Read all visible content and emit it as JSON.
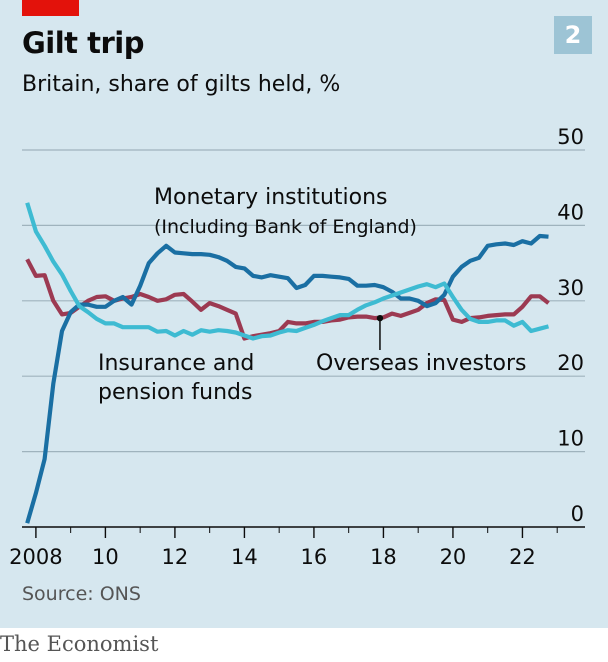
{
  "header": {
    "title": "Gilt trip",
    "subtitle": "Britain, share of gilts held, %",
    "badge": "2"
  },
  "footer": {
    "source": "Source: ONS",
    "brand": "The Economist"
  },
  "colors": {
    "background": "#d6e7ef",
    "monetary": "#1a6fa3",
    "insurance": "#3ebbd2",
    "overseas": "#9c3a52",
    "grid": "#9fb3bd",
    "accent": "#e3120b"
  },
  "chart_data": {
    "type": "line",
    "ylim": [
      0,
      50
    ],
    "yticks": [
      0,
      10,
      20,
      30,
      40,
      50
    ],
    "xlim": [
      2007.6,
      2023.8
    ],
    "xticks": [
      {
        "value": 2008,
        "label": "2008"
      },
      {
        "value": 2010,
        "label": "10"
      },
      {
        "value": 2012,
        "label": "12"
      },
      {
        "value": 2014,
        "label": "14"
      },
      {
        "value": 2016,
        "label": "16"
      },
      {
        "value": 2018,
        "label": "18"
      },
      {
        "value": 2020,
        "label": "20"
      },
      {
        "value": 2022,
        "label": "22"
      }
    ],
    "grid": true,
    "series": [
      {
        "name": "Monetary institutions",
        "sublabel": "(Including Bank of England)",
        "color": "#1a6fa3",
        "x": [
          2007.75,
          2008.0,
          2008.25,
          2008.5,
          2008.75,
          2009.0,
          2009.25,
          2009.5,
          2009.75,
          2010.0,
          2010.25,
          2010.5,
          2010.75,
          2011.0,
          2011.25,
          2011.5,
          2011.75,
          2012.0,
          2012.25,
          2012.5,
          2012.75,
          2013.0,
          2013.25,
          2013.5,
          2013.75,
          2014.0,
          2014.25,
          2014.5,
          2014.75,
          2015.0,
          2015.25,
          2015.5,
          2015.75,
          2016.0,
          2016.25,
          2016.5,
          2016.75,
          2017.0,
          2017.25,
          2017.5,
          2017.75,
          2018.0,
          2018.25,
          2018.5,
          2018.75,
          2019.0,
          2019.25,
          2019.5,
          2019.75,
          2020.0,
          2020.25,
          2020.5,
          2020.75,
          2021.0,
          2021.25,
          2021.5,
          2021.75,
          2022.0,
          2022.25,
          2022.5,
          2022.75
        ],
        "values": [
          0.5,
          4.5,
          9,
          19,
          26,
          28.5,
          29.5,
          29.5,
          29.2,
          29.2,
          30,
          30.5,
          29.5,
          32,
          35,
          36.3,
          37.3,
          36.4,
          36.3,
          36.2,
          36.2,
          36.1,
          35.8,
          35.3,
          34.5,
          34.3,
          33.3,
          33.1,
          33.4,
          33.2,
          33.0,
          31.7,
          32.1,
          33.3,
          33.3,
          33.2,
          33.1,
          32.9,
          32.0,
          32.0,
          32.1,
          31.8,
          31.2,
          30.3,
          30.3,
          30.0,
          29.3,
          29.7,
          30.8,
          33.2,
          34.5,
          35.3,
          35.7,
          37.3,
          37.5,
          37.6,
          37.4,
          37.9,
          37.6,
          38.6,
          38.5
        ]
      },
      {
        "name": "Insurance and",
        "name2": "pension funds",
        "color": "#3ebbd2",
        "x": [
          2007.75,
          2008.0,
          2008.25,
          2008.5,
          2008.75,
          2009.0,
          2009.25,
          2009.5,
          2009.75,
          2010.0,
          2010.25,
          2010.5,
          2010.75,
          2011.0,
          2011.25,
          2011.5,
          2011.75,
          2012.0,
          2012.25,
          2012.5,
          2012.75,
          2013.0,
          2013.25,
          2013.5,
          2013.75,
          2014.0,
          2014.25,
          2014.5,
          2014.75,
          2015.0,
          2015.25,
          2015.5,
          2015.75,
          2016.0,
          2016.25,
          2016.5,
          2016.75,
          2017.0,
          2017.25,
          2017.5,
          2017.75,
          2018.0,
          2018.25,
          2018.5,
          2018.75,
          2019.0,
          2019.25,
          2019.5,
          2019.75,
          2020.0,
          2020.25,
          2020.5,
          2020.75,
          2021.0,
          2021.25,
          2021.5,
          2021.75,
          2022.0,
          2022.25,
          2022.5,
          2022.75
        ],
        "values": [
          43,
          39.2,
          37.3,
          35.2,
          33.5,
          31.3,
          29.3,
          28.5,
          27.6,
          27.0,
          27.0,
          26.5,
          26.5,
          26.5,
          26.5,
          25.9,
          26.0,
          25.4,
          26.0,
          25.5,
          26.1,
          25.9,
          26.1,
          26.0,
          25.8,
          25.4,
          25.0,
          25.3,
          25.4,
          25.8,
          26.1,
          26.0,
          26.4,
          26.8,
          27.3,
          27.7,
          28.1,
          28.1,
          28.8,
          29.4,
          29.8,
          30.3,
          30.7,
          31.1,
          31.5,
          31.9,
          32.2,
          31.8,
          32.3,
          30.5,
          28.8,
          27.6,
          27.2,
          27.2,
          27.4,
          27.4,
          26.7,
          27.2,
          26.0,
          26.3,
          26.6
        ]
      },
      {
        "name": "Overseas investors",
        "color": "#9c3a52",
        "x": [
          2007.75,
          2008.0,
          2008.25,
          2008.5,
          2008.75,
          2009.0,
          2009.25,
          2009.5,
          2009.75,
          2010.0,
          2010.25,
          2010.5,
          2010.75,
          2011.0,
          2011.25,
          2011.5,
          2011.75,
          2012.0,
          2012.25,
          2012.5,
          2012.75,
          2013.0,
          2013.25,
          2013.5,
          2013.75,
          2014.0,
          2014.25,
          2014.5,
          2014.75,
          2015.0,
          2015.25,
          2015.5,
          2015.75,
          2016.0,
          2016.25,
          2016.5,
          2016.75,
          2017.0,
          2017.25,
          2017.5,
          2017.75,
          2018.0,
          2018.25,
          2018.5,
          2018.75,
          2019.0,
          2019.25,
          2019.5,
          2019.75,
          2020.0,
          2020.25,
          2020.5,
          2020.75,
          2021.0,
          2021.25,
          2021.5,
          2021.75,
          2022.0,
          2022.25,
          2022.5,
          2022.75
        ],
        "values": [
          35.5,
          33.3,
          33.4,
          30.0,
          28.2,
          28.4,
          29.2,
          30.0,
          30.5,
          30.6,
          30.0,
          30.3,
          30.5,
          30.9,
          30.5,
          30.0,
          30.2,
          30.8,
          30.9,
          29.9,
          28.8,
          29.7,
          29.3,
          28.8,
          28.3,
          25.0,
          25.3,
          25.5,
          25.7,
          26.0,
          27.2,
          27.0,
          27.0,
          27.2,
          27.2,
          27.4,
          27.5,
          27.8,
          27.9,
          27.9,
          27.7,
          27.8,
          28.3,
          28.0,
          28.4,
          28.8,
          29.7,
          30.2,
          30.1,
          27.5,
          27.2,
          27.7,
          27.8,
          28.0,
          28.1,
          28.2,
          28.2,
          29.2,
          30.6,
          30.6,
          29.7
        ]
      }
    ],
    "annotations": {
      "monetary": {
        "line1": "Monetary institutions",
        "line2": "(Including Bank of England)"
      },
      "insurance": {
        "line1": "Insurance and",
        "line2": "pension funds"
      },
      "overseas": {
        "line1": "Overseas investors",
        "pointer_x": 2017.9,
        "pointer_y": 27.7
      }
    }
  }
}
